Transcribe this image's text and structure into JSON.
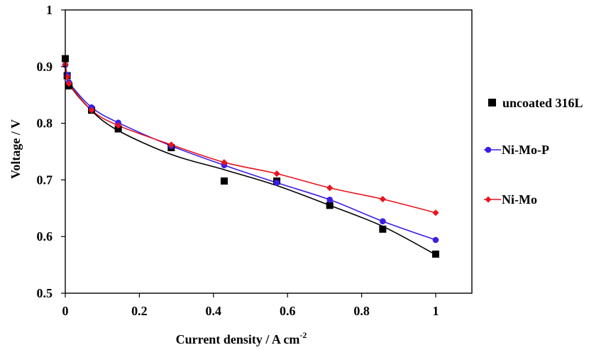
{
  "chart_data": {
    "type": "scatter",
    "xlabel": "Current density / A cm",
    "xlabel_superscript": "-2",
    "ylabel": "Voltage / V",
    "xlim": [
      0,
      1.1
    ],
    "ylim": [
      0.5,
      1.0
    ],
    "xticks": [
      "0",
      "0.2",
      "0.4",
      "0.6",
      "0.8",
      "1"
    ],
    "yticks": [
      "0.5",
      "0.6",
      "0.7",
      "0.8",
      "0.9",
      "1"
    ],
    "grid": false,
    "legend_position": "right",
    "series": [
      {
        "name": "uncoated 316L",
        "marker": "square",
        "line": false,
        "color": "#000000",
        "x": [
          0,
          0.005,
          0.01,
          0.071,
          0.143,
          0.286,
          0.429,
          0.571,
          0.714,
          0.857,
          1.0
        ],
        "y": [
          0.914,
          0.884,
          0.866,
          0.823,
          0.79,
          0.757,
          0.698,
          0.698,
          0.655,
          0.613,
          0.569
        ]
      },
      {
        "name": "Ni-Mo-P",
        "marker": "circle",
        "line": true,
        "color": "#3a1ee6",
        "x": [
          0,
          0.005,
          0.01,
          0.071,
          0.143,
          0.286,
          0.429,
          0.571,
          0.714,
          0.857,
          1.0
        ],
        "y": [
          0.903,
          0.885,
          0.872,
          0.828,
          0.801,
          0.76,
          0.726,
          0.695,
          0.665,
          0.627,
          0.594
        ]
      },
      {
        "name": "Ni-Mo",
        "marker": "diamond",
        "line": true,
        "color": "#e8141e",
        "x": [
          0,
          0.005,
          0.01,
          0.071,
          0.143,
          0.286,
          0.429,
          0.571,
          0.714,
          0.857,
          1.0
        ],
        "y": [
          0.904,
          0.882,
          0.87,
          0.823,
          0.796,
          0.762,
          0.731,
          0.711,
          0.686,
          0.666,
          0.642
        ]
      }
    ],
    "trendline": {
      "series": "uncoated 316L",
      "color": "#000000",
      "x": [
        0,
        0.01,
        0.071,
        0.143,
        0.286,
        0.429,
        0.571,
        0.714,
        0.857,
        1.0
      ],
      "y": [
        0.905,
        0.87,
        0.822,
        0.787,
        0.745,
        0.718,
        0.69,
        0.655,
        0.618,
        0.568
      ]
    }
  }
}
